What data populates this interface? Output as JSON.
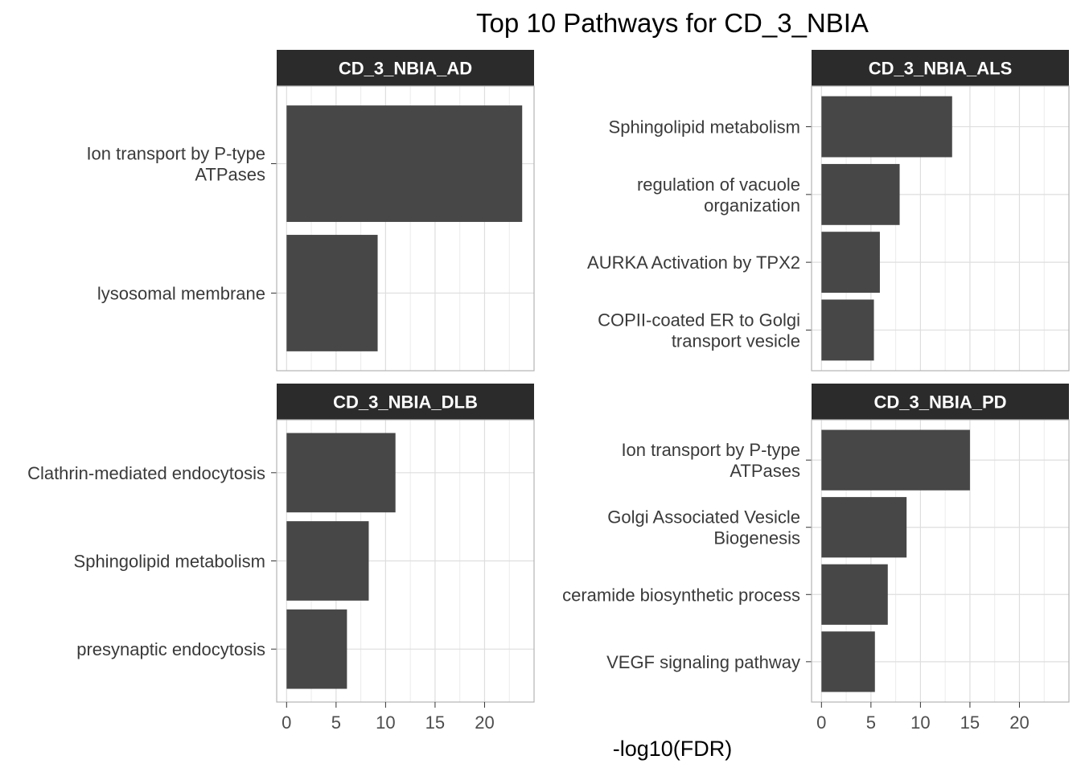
{
  "chart_data": {
    "type": "bar",
    "orientation": "horizontal",
    "title": "Top 10 Pathways for CD_3_NBIA",
    "xlabel": "-log10(FDR)",
    "ylabel": "",
    "xlim": [
      -1,
      25
    ],
    "xticks": [
      0,
      5,
      10,
      15,
      20
    ],
    "grid": true,
    "bar_color": "#474747",
    "strip_color": "#2b2b2b",
    "panels": [
      {
        "name": "CD_3_NBIA_AD",
        "categories": [
          "Ion transport by P-type ATPases",
          "lysosomal membrane"
        ],
        "values": [
          23.8,
          9.2
        ]
      },
      {
        "name": "CD_3_NBIA_ALS",
        "categories": [
          "Sphingolipid metabolism",
          "regulation of vacuole organization",
          "AURKA Activation by TPX2",
          "COPII-coated ER to Golgi transport vesicle"
        ],
        "values": [
          13.2,
          7.9,
          5.9,
          5.3
        ]
      },
      {
        "name": "CD_3_NBIA_DLB",
        "categories": [
          "Clathrin-mediated endocytosis",
          "Sphingolipid metabolism",
          "presynaptic endocytosis"
        ],
        "values": [
          11.0,
          8.3,
          6.1
        ]
      },
      {
        "name": "CD_3_NBIA_PD",
        "categories": [
          "Ion transport by P-type ATPases",
          "Golgi Associated Vesicle Biogenesis",
          "ceramide biosynthetic process",
          "VEGF signaling pathway"
        ],
        "values": [
          15.0,
          8.6,
          6.7,
          5.4
        ]
      }
    ]
  }
}
